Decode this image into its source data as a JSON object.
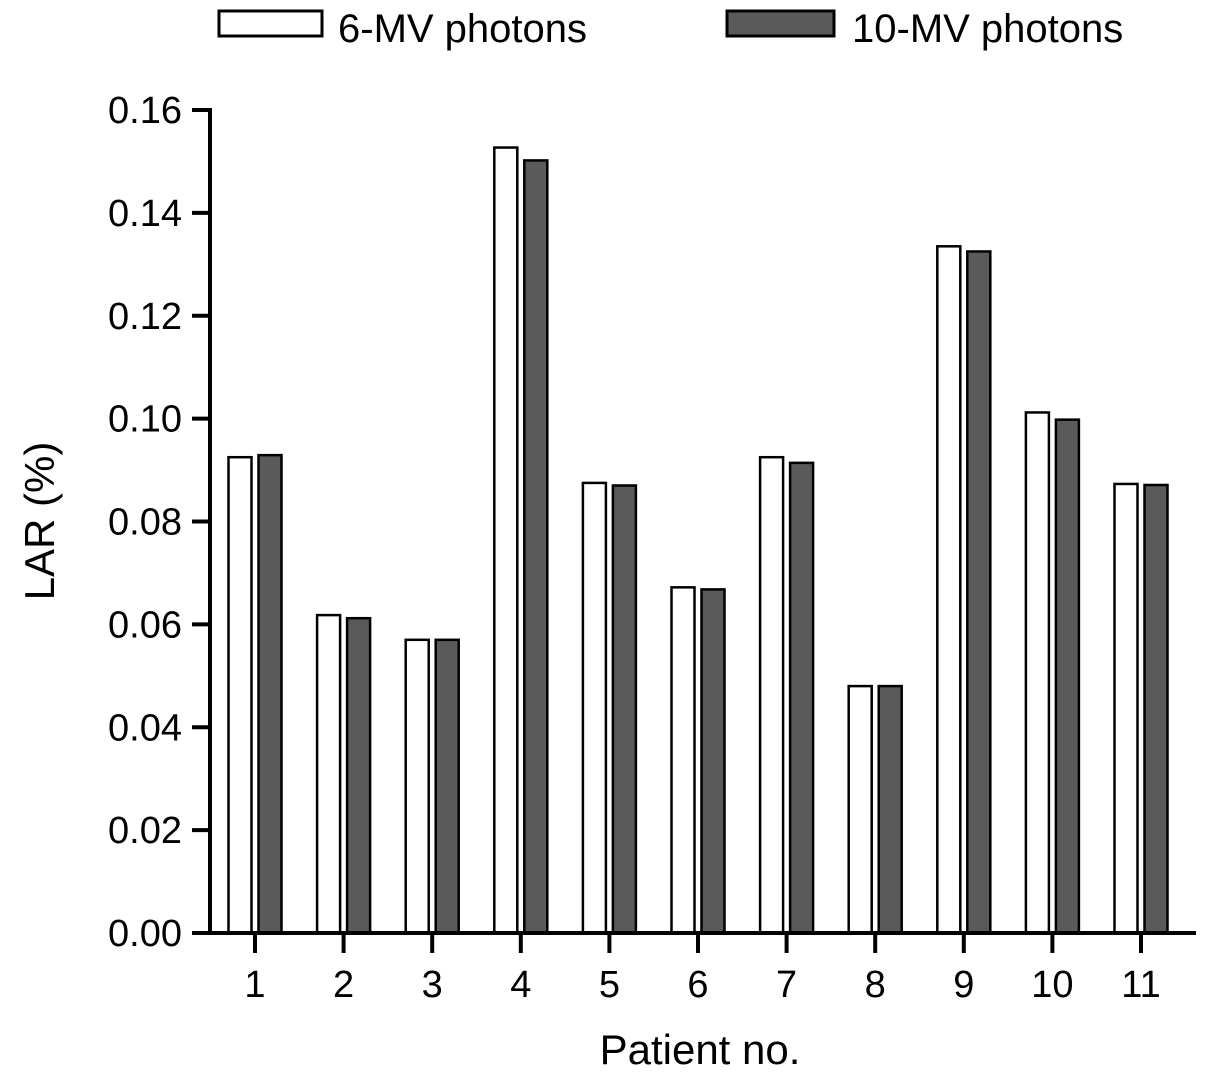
{
  "chart_data": {
    "type": "bar",
    "title": "",
    "xlabel": "Patient no.",
    "ylabel": "LAR (%)",
    "ylim": [
      0,
      0.16
    ],
    "yticks": [
      "0.00",
      "0.02",
      "0.04",
      "0.06",
      "0.08",
      "0.10",
      "0.12",
      "0.14",
      "0.16"
    ],
    "categories": [
      "1",
      "2",
      "3",
      "4",
      "5",
      "6",
      "7",
      "8",
      "9",
      "10",
      "11"
    ],
    "series": [
      {
        "name": "6-MV photons",
        "color": "#ffffff",
        "values": [
          0.0925,
          0.0618,
          0.057,
          0.1527,
          0.0875,
          0.0672,
          0.0925,
          0.048,
          0.1335,
          0.1012,
          0.0873
        ]
      },
      {
        "name": "10-MV photons",
        "color": "#5a5a5a",
        "values": [
          0.0929,
          0.0612,
          0.057,
          0.1502,
          0.087,
          0.0668,
          0.0914,
          0.048,
          0.1325,
          0.0998,
          0.0871
        ]
      }
    ],
    "grid": false,
    "legend_position": "top"
  }
}
